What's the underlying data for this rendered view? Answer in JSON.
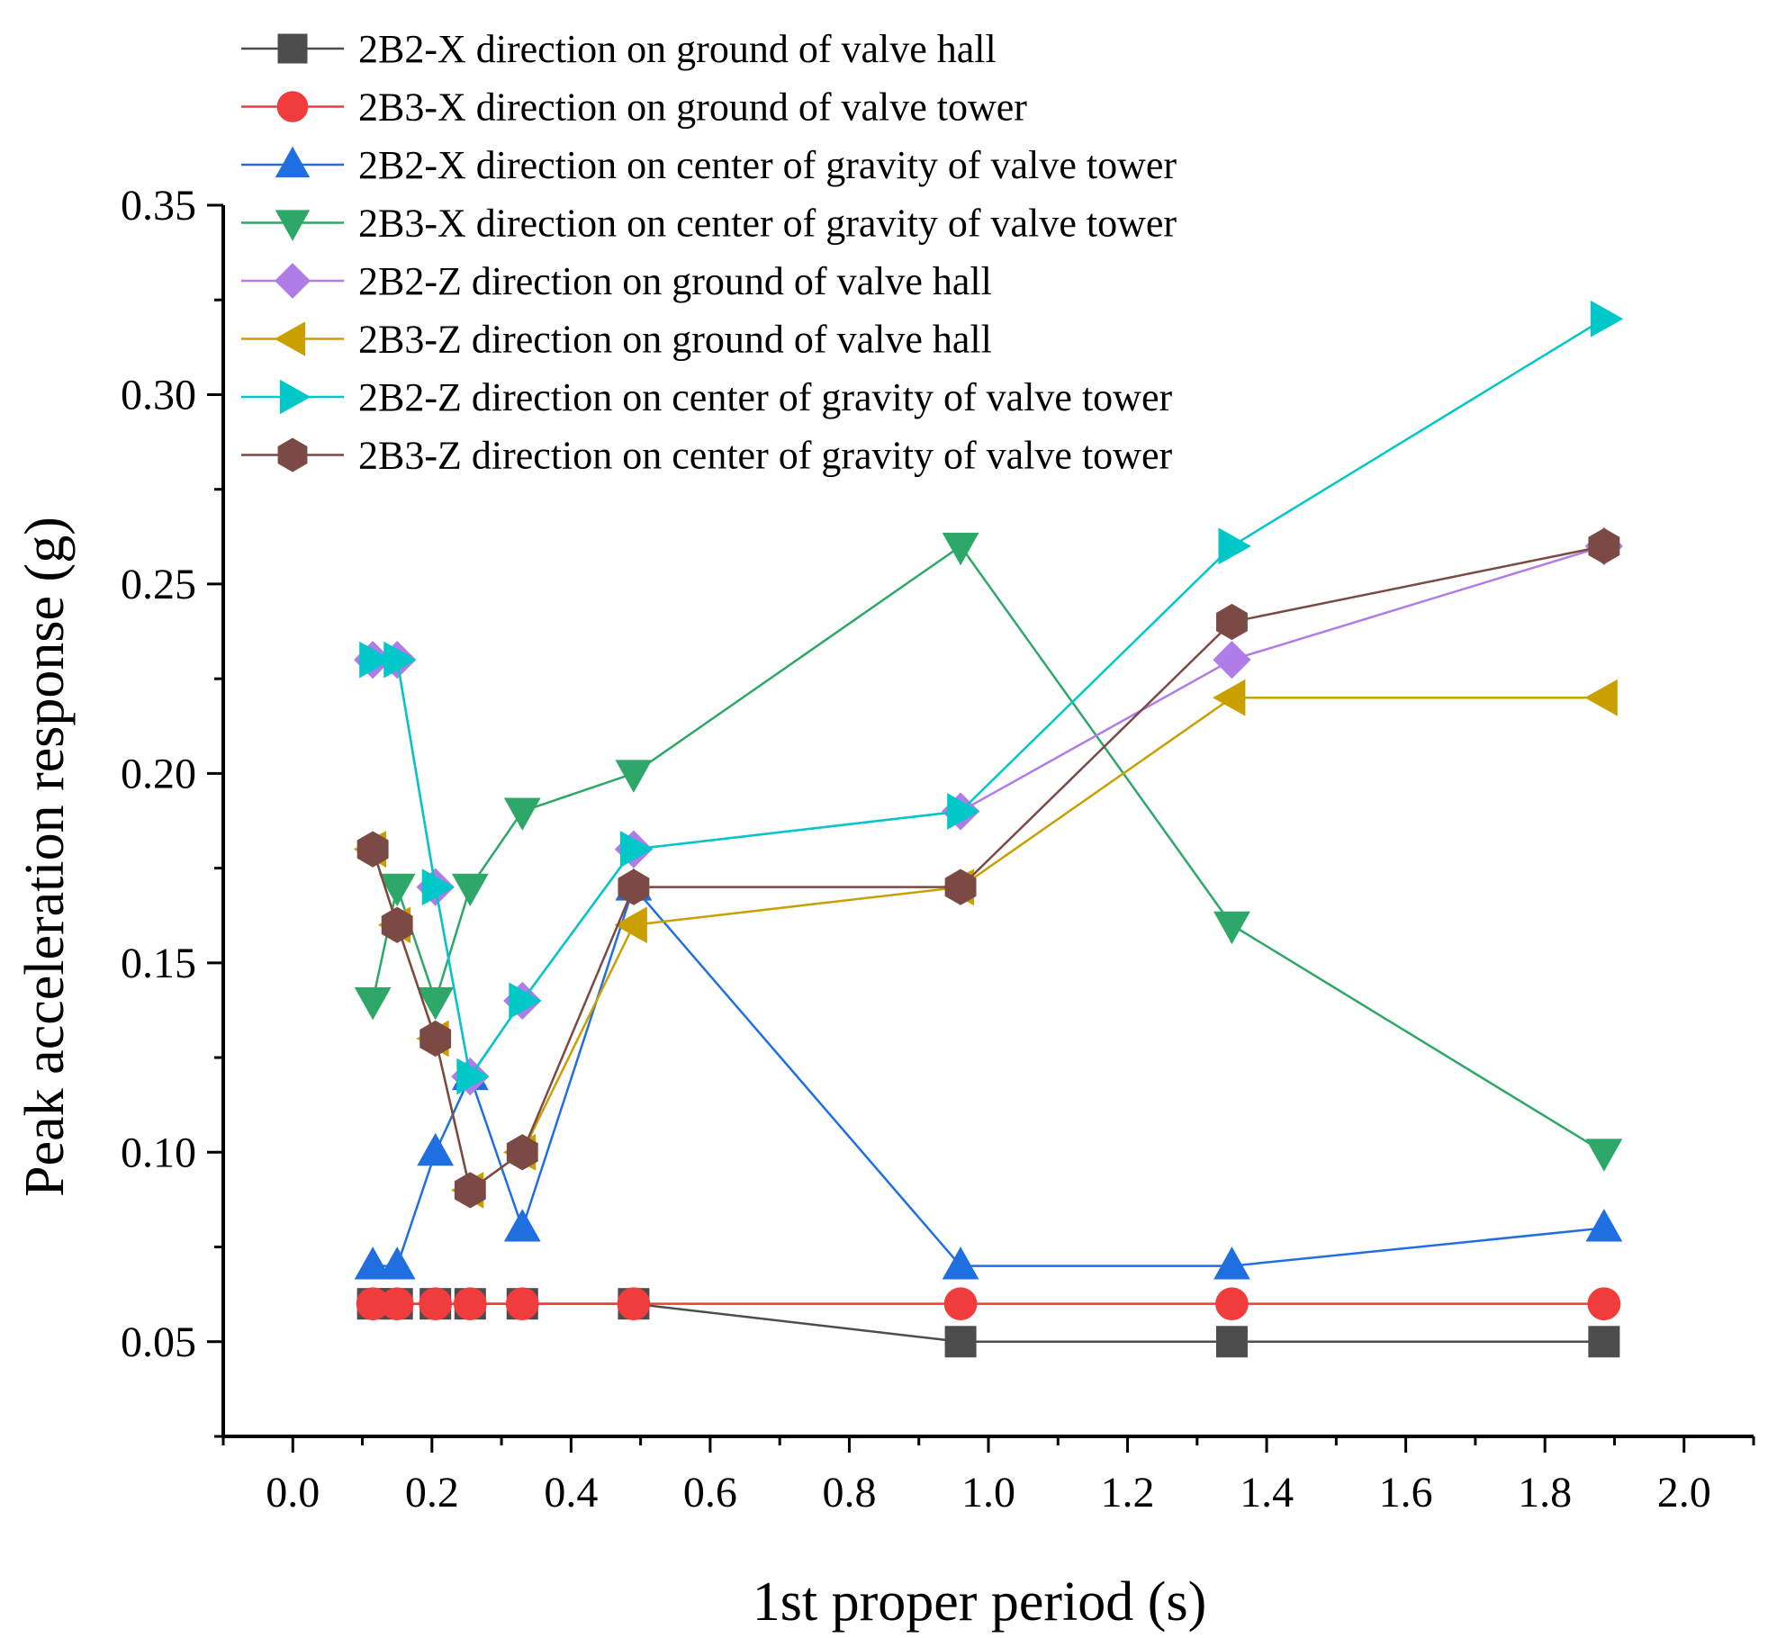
{
  "chart_data": {
    "type": "line",
    "title": "",
    "xlabel": "1st proper period (s)",
    "ylabel": "Peak acceleration response (g)",
    "xlim": [
      -0.1,
      2.1
    ],
    "ylim": [
      0.025,
      0.35
    ],
    "xticks": [
      0.0,
      0.2,
      0.4,
      0.6,
      0.8,
      1.0,
      1.2,
      1.4,
      1.6,
      1.8,
      2.0
    ],
    "xtick_labels": [
      "0.0",
      "0.2",
      "0.4",
      "0.6",
      "0.8",
      "1.0",
      "1.2",
      "1.4",
      "1.6",
      "1.8",
      "2.0"
    ],
    "yticks": [
      0.05,
      0.1,
      0.15,
      0.2,
      0.25,
      0.3,
      0.35
    ],
    "ytick_labels": [
      "0.05",
      "0.10",
      "0.15",
      "0.20",
      "0.25",
      "0.30",
      "0.35"
    ],
    "grid": false,
    "legend_position": "top-left",
    "x": [
      0.115,
      0.15,
      0.205,
      0.255,
      0.33,
      0.49,
      0.96,
      1.35,
      1.885
    ],
    "series": [
      {
        "name": "2B2-X direction on ground of valve hall",
        "color": "#4d4d4d",
        "marker": "square",
        "values": [
          0.06,
          0.06,
          0.06,
          0.06,
          0.06,
          0.06,
          0.05,
          0.05,
          0.05
        ]
      },
      {
        "name": "2B3-X direction on ground of valve tower",
        "color": "#f03c3c",
        "marker": "circle",
        "values": [
          0.06,
          0.06,
          0.06,
          0.06,
          0.06,
          0.06,
          0.06,
          0.06,
          0.06
        ]
      },
      {
        "name": "2B2-X direction on center of gravity of valve tower",
        "color": "#1f6fe0",
        "marker": "triangle-up",
        "values": [
          0.07,
          0.07,
          0.1,
          0.12,
          0.08,
          0.17,
          0.07,
          0.07,
          0.08
        ]
      },
      {
        "name": "2B3-X direction on center of gravity of valve tower",
        "color": "#2ea868",
        "marker": "triangle-down",
        "values": [
          0.14,
          0.17,
          0.14,
          0.17,
          0.19,
          0.2,
          0.26,
          0.16,
          0.1
        ]
      },
      {
        "name": "2B2-Z direction on ground of valve hall",
        "color": "#b07ce8",
        "marker": "diamond",
        "values": [
          0.23,
          0.23,
          0.17,
          0.12,
          0.14,
          0.18,
          0.19,
          0.23,
          0.26
        ]
      },
      {
        "name": "2B3-Z direction on ground of valve hall",
        "color": "#c9a000",
        "marker": "triangle-left",
        "values": [
          0.18,
          0.16,
          0.13,
          0.09,
          0.1,
          0.16,
          0.17,
          0.22,
          0.22
        ]
      },
      {
        "name": "2B2-Z direction on center of gravity of valve tower",
        "color": "#00c8c8",
        "marker": "triangle-right",
        "values": [
          0.23,
          0.23,
          0.17,
          0.12,
          0.14,
          0.18,
          0.19,
          0.26,
          0.32
        ]
      },
      {
        "name": "2B3-Z direction on center of gravity of valve tower",
        "color": "#7b4a45",
        "marker": "hexagon",
        "values": [
          0.18,
          0.16,
          0.13,
          0.09,
          0.1,
          0.17,
          0.17,
          0.24,
          0.26
        ]
      }
    ]
  }
}
